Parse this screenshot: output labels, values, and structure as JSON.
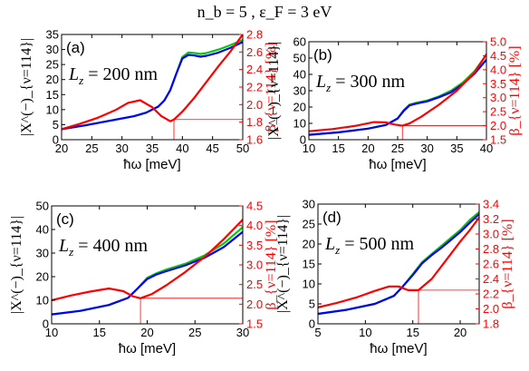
{
  "suptitle": "n_b = 5  ,  ε_F = 3 eV",
  "colors": {
    "left_axis": "#000000",
    "right_axis": "#ff0000",
    "series_blue": "#0000ff",
    "series_green": "#00cc00",
    "series_red": "#ff0000"
  },
  "chart_data": [
    {
      "type": "line",
      "panel_label": "(a)",
      "annotation": "L_z = 200 nm",
      "xlabel": "ħω [meV]",
      "ylabel_left": "|X^(−)_{ν=114}|",
      "ylabel_right": "β_{ν=114} [%]",
      "xlim": [
        20,
        50
      ],
      "ylim_left": [
        0,
        35
      ],
      "ylim_right": [
        1.6,
        2.8
      ],
      "xticks": [
        "20",
        "25",
        "30",
        "35",
        "40",
        "45",
        "50"
      ],
      "yticks_left": [
        "0",
        "5",
        "10",
        "15",
        "20",
        "25",
        "30",
        "35"
      ],
      "yticks_right": [
        "1.6",
        "1.8",
        "2.0",
        "2.2",
        "2.4",
        "2.6",
        "2.8"
      ],
      "marker": {
        "x": 38.6,
        "y_right": 1.83
      },
      "series": [
        {
          "color": "green",
          "axis": "left",
          "x": [
            20,
            24,
            28,
            32,
            34,
            36,
            37,
            38,
            39,
            40,
            41,
            42,
            43,
            44,
            46,
            48,
            50
          ],
          "y": [
            3.5,
            4.8,
            6.3,
            7.8,
            9.0,
            11.0,
            13.0,
            16.5,
            22.0,
            27.5,
            29.0,
            28.8,
            28.5,
            28.8,
            30.0,
            31.5,
            33.2
          ]
        },
        {
          "color": "blue",
          "axis": "left",
          "x": [
            20,
            24,
            28,
            32,
            34,
            36,
            37,
            38,
            39,
            40,
            41,
            42,
            43,
            44,
            46,
            48,
            50
          ],
          "y": [
            3.5,
            4.8,
            6.3,
            7.8,
            9.0,
            11.0,
            13.0,
            16.5,
            22.0,
            27.0,
            28.2,
            28.0,
            27.6,
            27.9,
            29.0,
            30.6,
            32.5
          ]
        },
        {
          "color": "red",
          "axis": "right",
          "x": [
            20,
            23,
            26,
            29,
            31,
            33,
            35,
            36.5,
            38,
            38.6,
            40,
            42,
            44,
            46,
            48,
            50
          ],
          "y": [
            1.72,
            1.78,
            1.85,
            1.94,
            2.02,
            2.05,
            1.97,
            1.87,
            1.81,
            1.83,
            1.92,
            2.08,
            2.26,
            2.44,
            2.61,
            2.8
          ]
        }
      ]
    },
    {
      "type": "line",
      "panel_label": "(b)",
      "annotation": "L_z = 300 nm",
      "xlabel": "ħω [meV]",
      "ylabel_left": "|X^(−)_{ν=114}|",
      "ylabel_right": "β_{ν=114} [%]",
      "xlim": [
        10,
        40
      ],
      "ylim_left": [
        0,
        60
      ],
      "ylim_right": [
        1.5,
        5.0
      ],
      "xticks": [
        "10",
        "15",
        "20",
        "25",
        "30",
        "35",
        "40"
      ],
      "yticks_left": [
        "0",
        "10",
        "20",
        "30",
        "40",
        "50",
        "60"
      ],
      "yticks_right": [
        "1.5",
        "2.0",
        "2.5",
        "3.0",
        "3.5",
        "4.0",
        "4.5",
        "5.0"
      ],
      "marker": {
        "x": 25.8,
        "y_right": 2.0
      },
      "series": [
        {
          "color": "green",
          "axis": "left",
          "x": [
            10,
            15,
            20,
            23,
            25,
            26,
            27,
            28,
            30,
            32,
            34,
            36,
            38,
            40
          ],
          "y": [
            3.0,
            4.5,
            6.8,
            9.0,
            13.0,
            18.0,
            21.5,
            22.5,
            24.0,
            26.5,
            30.0,
            35.0,
            42.0,
            52.0
          ]
        },
        {
          "color": "blue",
          "axis": "left",
          "x": [
            10,
            15,
            20,
            23,
            25,
            26,
            27,
            28,
            30,
            32,
            34,
            36,
            38,
            40
          ],
          "y": [
            3.0,
            4.5,
            6.8,
            9.0,
            13.0,
            17.5,
            21.0,
            22.0,
            23.5,
            26.0,
            29.0,
            34.0,
            40.5,
            49.0
          ]
        },
        {
          "color": "red",
          "axis": "right",
          "x": [
            10,
            14,
            18,
            21,
            23,
            24.5,
            25.8,
            27,
            29,
            32,
            35,
            38,
            40
          ],
          "y": [
            1.8,
            1.88,
            2.0,
            2.13,
            2.12,
            2.04,
            2.0,
            2.08,
            2.32,
            2.75,
            3.25,
            3.9,
            4.55
          ]
        }
      ]
    },
    {
      "type": "line",
      "panel_label": "(c)",
      "annotation": "L_z = 400 nm",
      "xlabel": "ħω [meV]",
      "ylabel_left": "|X^(−)_{ν=114}|",
      "ylabel_right": "β_{ν=114} [%]",
      "xlim": [
        10,
        30
      ],
      "ylim_left": [
        0,
        50
      ],
      "ylim_right": [
        1.5,
        4.5
      ],
      "xticks": [
        "10",
        "15",
        "20",
        "25",
        "30"
      ],
      "yticks_left": [
        "0",
        "10",
        "20",
        "30",
        "40",
        "50"
      ],
      "yticks_right": [
        "1.5",
        "2.0",
        "2.5",
        "3.0",
        "3.5",
        "4.0",
        "4.5"
      ],
      "marker": {
        "x": 19.3,
        "y_right": 2.15
      },
      "series": [
        {
          "color": "green",
          "axis": "left",
          "x": [
            10,
            13,
            16,
            18,
            19,
            20,
            21,
            22,
            24,
            26,
            28,
            30
          ],
          "y": [
            4.0,
            5.5,
            8.0,
            11.0,
            15.0,
            19.5,
            21.5,
            23.0,
            25.5,
            29.0,
            34.0,
            41.0
          ]
        },
        {
          "color": "blue",
          "axis": "left",
          "x": [
            10,
            13,
            16,
            18,
            19,
            20,
            21,
            22,
            24,
            26,
            28,
            30
          ],
          "y": [
            4.0,
            5.5,
            8.0,
            11.0,
            15.0,
            19.0,
            21.0,
            22.3,
            24.8,
            28.0,
            32.5,
            39.0
          ]
        },
        {
          "color": "red",
          "axis": "right",
          "x": [
            10,
            12,
            14,
            16,
            17.5,
            18.5,
            19.3,
            20.5,
            22,
            24,
            26,
            28,
            30
          ],
          "y": [
            2.1,
            2.22,
            2.32,
            2.4,
            2.33,
            2.2,
            2.15,
            2.26,
            2.48,
            2.82,
            3.2,
            3.65,
            4.15
          ]
        }
      ]
    },
    {
      "type": "line",
      "panel_label": "(d)",
      "annotation": "L_z = 500 nm",
      "xlabel": "ħω [meV]",
      "ylabel_left": "|X^(−)_{ν=114}|",
      "ylabel_right": "β_{ν=114} [%]",
      "xlim": [
        5,
        22
      ],
      "ylim_left": [
        0,
        30
      ],
      "ylim_right": [
        1.8,
        3.4
      ],
      "xticks": [
        "5",
        "10",
        "15",
        "20"
      ],
      "yticks_left": [
        "0",
        "5",
        "10",
        "15",
        "20",
        "25",
        "30"
      ],
      "yticks_right": [
        "1.8",
        "2.0",
        "2.2",
        "2.4",
        "2.6",
        "2.8",
        "3.0",
        "3.2",
        "3.4"
      ],
      "marker": {
        "x": 15.6,
        "y_right": 2.25
      },
      "series": [
        {
          "color": "green",
          "axis": "left",
          "x": [
            5,
            8,
            11,
            13,
            14,
            15,
            16,
            17,
            18,
            19,
            20,
            21,
            22
          ],
          "y": [
            2.5,
            3.5,
            5.0,
            7.0,
            9.5,
            12.5,
            15.5,
            17.5,
            19.5,
            21.5,
            23.5,
            26.0,
            28.0
          ]
        },
        {
          "color": "blue",
          "axis": "left",
          "x": [
            5,
            8,
            11,
            13,
            14,
            15,
            16,
            17,
            18,
            19,
            20,
            21,
            22
          ],
          "y": [
            2.5,
            3.5,
            5.0,
            7.0,
            9.5,
            12.2,
            15.2,
            17.2,
            19.0,
            21.0,
            23.0,
            25.3,
            27.5
          ]
        },
        {
          "color": "red",
          "axis": "right",
          "x": [
            5,
            7,
            9,
            11,
            12.5,
            13.5,
            14.5,
            15.6,
            17,
            18.5,
            20,
            21,
            22
          ],
          "y": [
            2.02,
            2.08,
            2.15,
            2.24,
            2.3,
            2.3,
            2.25,
            2.25,
            2.4,
            2.65,
            2.9,
            3.05,
            3.22
          ]
        }
      ]
    }
  ]
}
